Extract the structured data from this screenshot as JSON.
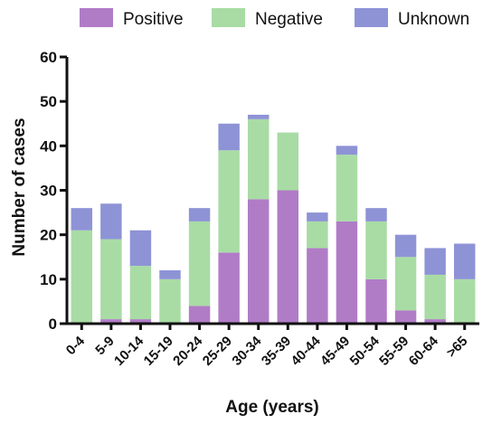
{
  "chart_data": {
    "type": "bar",
    "stacked": true,
    "title": "",
    "xlabel": "Age (years)",
    "ylabel": "Number of cases",
    "ylim": [
      0,
      60
    ],
    "yticks": [
      0,
      10,
      20,
      30,
      40,
      50,
      60
    ],
    "grid": false,
    "legend_position": "top",
    "categories": [
      "0-4",
      "5-9",
      "10-14",
      "15-19",
      "20-24",
      "25-29",
      "30-34",
      "35-39",
      "40-44",
      "45-49",
      "50-54",
      "55-59",
      "60-64",
      ">65"
    ],
    "series": [
      {
        "name": "Positive",
        "color": "#b07cc6",
        "values": [
          0,
          1,
          1,
          0,
          4,
          16,
          28,
          30,
          17,
          23,
          10,
          3,
          1,
          0
        ]
      },
      {
        "name": "Negative",
        "color": "#a8dca4",
        "values": [
          21,
          18,
          12,
          10,
          19,
          23,
          18,
          13,
          6,
          15,
          13,
          12,
          10,
          10
        ]
      },
      {
        "name": "Unknown",
        "color": "#8e93d6",
        "values": [
          5,
          8,
          8,
          2,
          3,
          6,
          1,
          0,
          2,
          2,
          3,
          5,
          6,
          8
        ]
      }
    ]
  }
}
